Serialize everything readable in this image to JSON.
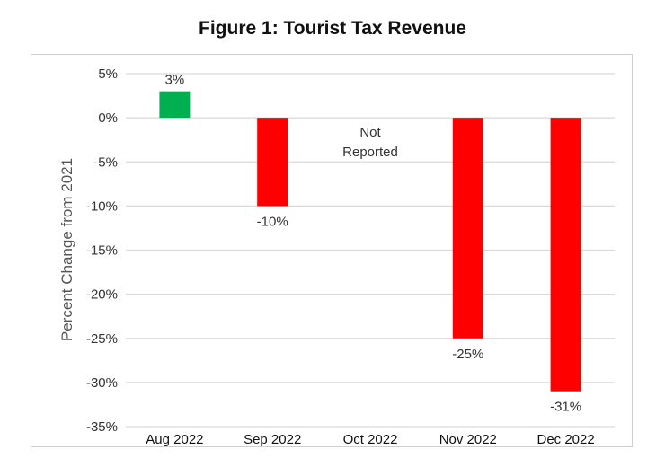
{
  "chart_data": {
    "type": "bar",
    "title": "Figure 1:  Tourist Tax Revenue",
    "ylabel": "Percent Change from 2021",
    "xlabel": "",
    "categories": [
      "Aug 2022",
      "Sep 2022",
      "Oct 2022",
      "Nov 2022",
      "Dec 2022"
    ],
    "values": [
      3,
      -10,
      null,
      -25,
      -31
    ],
    "data_labels": [
      "3%",
      "-10%",
      "",
      "-25%",
      "-31%"
    ],
    "annotations": [
      {
        "category": "Oct 2022",
        "lines": [
          "Not",
          "Reported"
        ]
      }
    ],
    "ylim": [
      -35,
      5
    ],
    "yticks": [
      "5%",
      "0%",
      "-5%",
      "-10%",
      "-15%",
      "-20%",
      "-25%",
      "-30%",
      "-35%"
    ],
    "grid": true,
    "colors": {
      "positive": "#00b050",
      "negative": "#ff0000",
      "grid": "#d9d9d9"
    }
  }
}
